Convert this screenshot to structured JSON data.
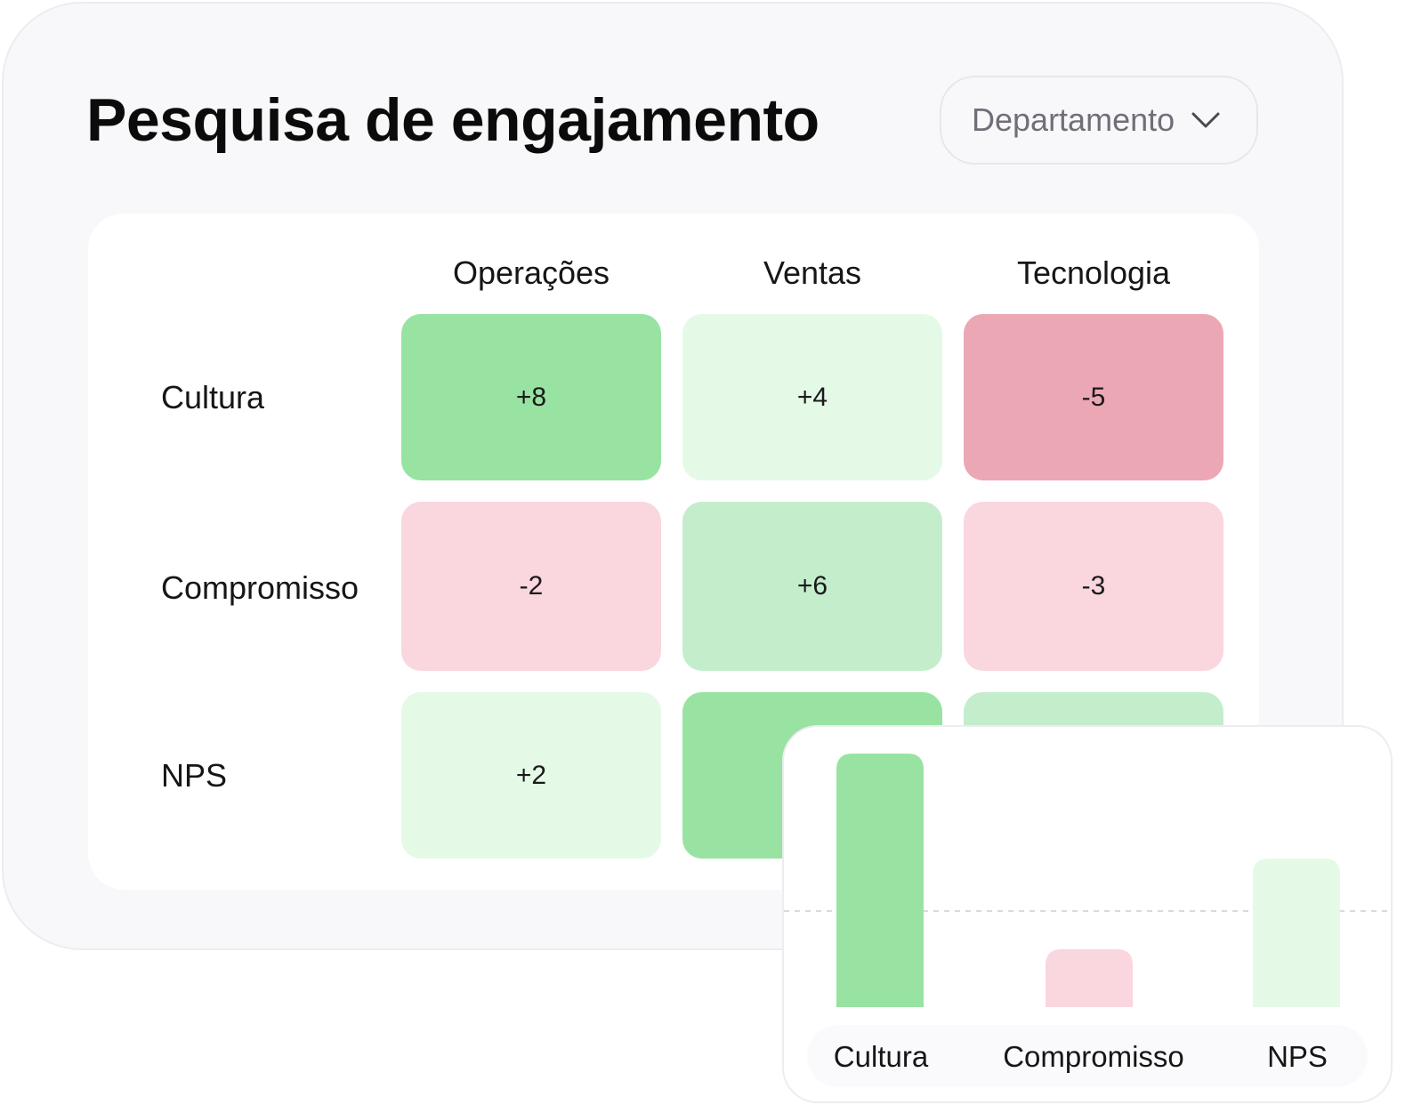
{
  "title": "Pesquisa de engajamento",
  "filter": {
    "label": "Departamento",
    "icon": "chevron-down-icon"
  },
  "heatmap": {
    "columns": [
      "Operações",
      "Ventas",
      "Tecnologia"
    ],
    "rows": [
      {
        "label": "Cultura",
        "values": [
          "+8",
          "+4",
          "-5"
        ]
      },
      {
        "label": "Compromisso",
        "values": [
          "-2",
          "+6",
          "-3"
        ]
      },
      {
        "label": "NPS",
        "values": [
          "+2",
          "",
          ""
        ]
      }
    ]
  },
  "colors": {
    "strong_positive": "#98e3a2",
    "positive": "#c4edcc",
    "light_positive": "#e5f9e7",
    "light_negative": "#fad6de",
    "strong_negative": "#eba7b4"
  },
  "chart_data": {
    "type": "bar",
    "categories": [
      "Cultura",
      "Compromisso",
      "NPS"
    ],
    "values": [
      8,
      -2,
      2
    ],
    "ylim": [
      -4,
      8
    ],
    "baseline": 0,
    "bar_colors": [
      "#98e3a2",
      "#fad6de",
      "#e5f9e7"
    ]
  }
}
